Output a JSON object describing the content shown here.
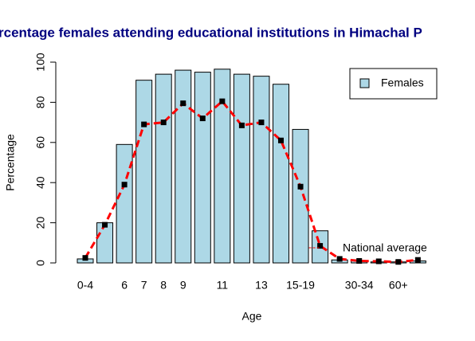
{
  "chart_data": {
    "type": "bar",
    "title": "rcentage females attending educational institutions in Himachal P",
    "xlabel": "Age",
    "ylabel": "Percentage",
    "categories": [
      "0-4",
      null,
      "6",
      "7",
      "8",
      "9",
      null,
      "11",
      null,
      "13",
      null,
      "15-19",
      null,
      null,
      "30-34",
      null,
      "60+",
      null
    ],
    "series": [
      {
        "name": "Females",
        "color": "#add8e6",
        "values": [
          2,
          20,
          59,
          91,
          94,
          96,
          95,
          96.5,
          94,
          93,
          89,
          66.5,
          16,
          1.5,
          1,
          0.5,
          0.5,
          1
        ]
      },
      {
        "name": "National average",
        "type": "line",
        "color": "#ff0000",
        "values": [
          2.5,
          19,
          39,
          69,
          70,
          79.5,
          72,
          80.5,
          68.5,
          70,
          61,
          38,
          8.5,
          2,
          1,
          0.8,
          0.5,
          1.5
        ]
      }
    ],
    "ylim": [
      0,
      100
    ],
    "yticks": [
      0,
      20,
      40,
      60,
      80,
      100
    ],
    "legend": "topright"
  }
}
